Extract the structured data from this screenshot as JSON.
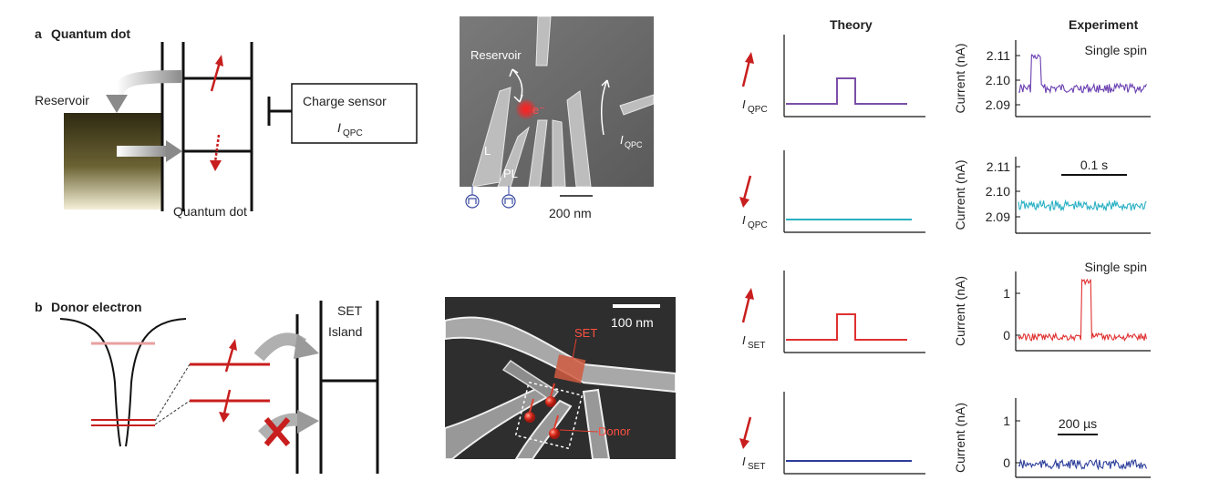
{
  "panel_a": {
    "letter": "a",
    "title": "Quantum dot",
    "reservoir_label": "Reservoir",
    "dot_label": "Quantum dot",
    "sensor_label": "Charge sensor",
    "sensor_symbol": "I",
    "sensor_sub": "QPC"
  },
  "micrograph_a": {
    "reservoir_label": "Reservoir",
    "electron_label": "e⁻",
    "gate_l": "L",
    "gate_pl": "PL",
    "current_symbol": "I",
    "current_sub": "QPC",
    "scale_label": "200 nm"
  },
  "panel_b": {
    "letter": "b",
    "title": "Donor electron",
    "set_line1": "SET",
    "set_line2": "Island"
  },
  "micrograph_b": {
    "scale_label": "100 nm",
    "set_label": "SET",
    "donor_label": "Donor"
  },
  "columns": {
    "theory": "Theory",
    "experiment": "Experiment"
  },
  "theory_plots": [
    {
      "spin": "up",
      "symbol": "I",
      "sub": "QPC",
      "color": "#7b4fa8",
      "pulse": true
    },
    {
      "spin": "down",
      "symbol": "I",
      "sub": "QPC",
      "color": "#2ab0c4",
      "pulse": false
    },
    {
      "spin": "up",
      "symbol": "I",
      "sub": "SET",
      "color": "#e03030",
      "pulse": true
    },
    {
      "spin": "down",
      "symbol": "I",
      "sub": "SET",
      "color": "#2b3d9a",
      "pulse": false
    }
  ],
  "experiment_plots": [
    {
      "ylabel": "Current (nA)",
      "ticks": [
        "2.11",
        "2.10",
        "2.09"
      ],
      "annotation": "Single spin",
      "scale_bar": "",
      "color": "#6a3fb0"
    },
    {
      "ylabel": "Current (nA)",
      "ticks": [
        "2.11",
        "2.10",
        "2.09"
      ],
      "annotation": "",
      "scale_bar": "0.1 s",
      "color": "#2ab0c4"
    },
    {
      "ylabel": "Current (nA)",
      "ticks": [
        "1",
        "0"
      ],
      "annotation": "Single spin",
      "scale_bar": "",
      "color": "#e03030"
    },
    {
      "ylabel": "Current (nA)",
      "ticks": [
        "1",
        "0"
      ],
      "annotation": "",
      "scale_bar": "200 µs",
      "color": "#2b3d9a"
    }
  ]
}
